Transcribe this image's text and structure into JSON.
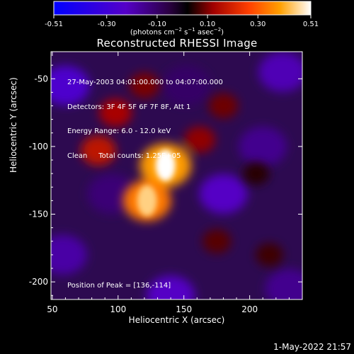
{
  "plot": {
    "title": "Reconstructed RHESSI Image",
    "units_html": "(photons cm<sup>−2</sup> s<sup>−1</sup> asec<sup>−2</sup>)",
    "info_lines": [
      "27-May-2003 04:01:00.000 to 04:07:00.000",
      "Detectors: 3F 4F 5F 6F 7F 8F, Att 1",
      "Energy Range: 6.0 - 12.0 keV",
      "Clean     Total counts: 1.25E+05"
    ],
    "peak_label": "Position of Peak = [136,-114]",
    "footer_date": "1-May-2022 21:57"
  },
  "colorbar": {
    "min": -0.51,
    "max": 0.51,
    "tick_values": [
      -0.51,
      -0.3,
      -0.1,
      0.1,
      0.3,
      0.51
    ],
    "tick_labels": [
      "-0.51",
      "-0.30",
      "-0.10",
      "0.10",
      "0.30",
      "0.51"
    ]
  },
  "chart_data": {
    "type": "heatmap",
    "title": "Reconstructed RHESSI Image",
    "xlabel": "Heliocentric X (arcsec)",
    "ylabel": "Heliocentric Y (arcsec)",
    "xlim": [
      49,
      240
    ],
    "ylim": [
      -213,
      -30
    ],
    "xticks": [
      50,
      100,
      150,
      200
    ],
    "yticks": [
      -50,
      -100,
      -150,
      -200
    ],
    "colorscale": [
      "#0000ff",
      "#5500c8",
      "#2a0040",
      "#000000",
      "#a00000",
      "#ff4000",
      "#ffa000",
      "#ffffff"
    ],
    "zrange": [
      -0.51,
      0.51
    ],
    "peak": {
      "x": 136,
      "y": -114,
      "value": 0.51
    },
    "bright_features": [
      {
        "x": 136,
        "y": -114,
        "value": 0.51
      },
      {
        "x": 122,
        "y": -140,
        "value": 0.45
      },
      {
        "x": 85,
        "y": -103,
        "value": 0.22
      },
      {
        "x": 98,
        "y": -75,
        "value": 0.18
      },
      {
        "x": 162,
        "y": -95,
        "value": 0.15
      },
      {
        "x": 180,
        "y": -70,
        "value": 0.12
      },
      {
        "x": 120,
        "y": -55,
        "value": 0.13
      },
      {
        "x": 175,
        "y": -170,
        "value": 0.1
      },
      {
        "x": 215,
        "y": -180,
        "value": 0.08
      },
      {
        "x": 205,
        "y": -120,
        "value": 0.06
      }
    ],
    "dark_features": [
      {
        "x": 60,
        "y": -55,
        "value": -0.25
      },
      {
        "x": 225,
        "y": -45,
        "value": -0.2
      },
      {
        "x": 180,
        "y": -135,
        "value": -0.22
      },
      {
        "x": 140,
        "y": -210,
        "value": -0.22
      },
      {
        "x": 58,
        "y": -180,
        "value": -0.18
      },
      {
        "x": 95,
        "y": -135,
        "value": -0.12
      },
      {
        "x": 210,
        "y": -100,
        "value": -0.15
      },
      {
        "x": 230,
        "y": -205,
        "value": -0.15
      },
      {
        "x": 152,
        "y": -55,
        "value": -0.1
      }
    ]
  }
}
